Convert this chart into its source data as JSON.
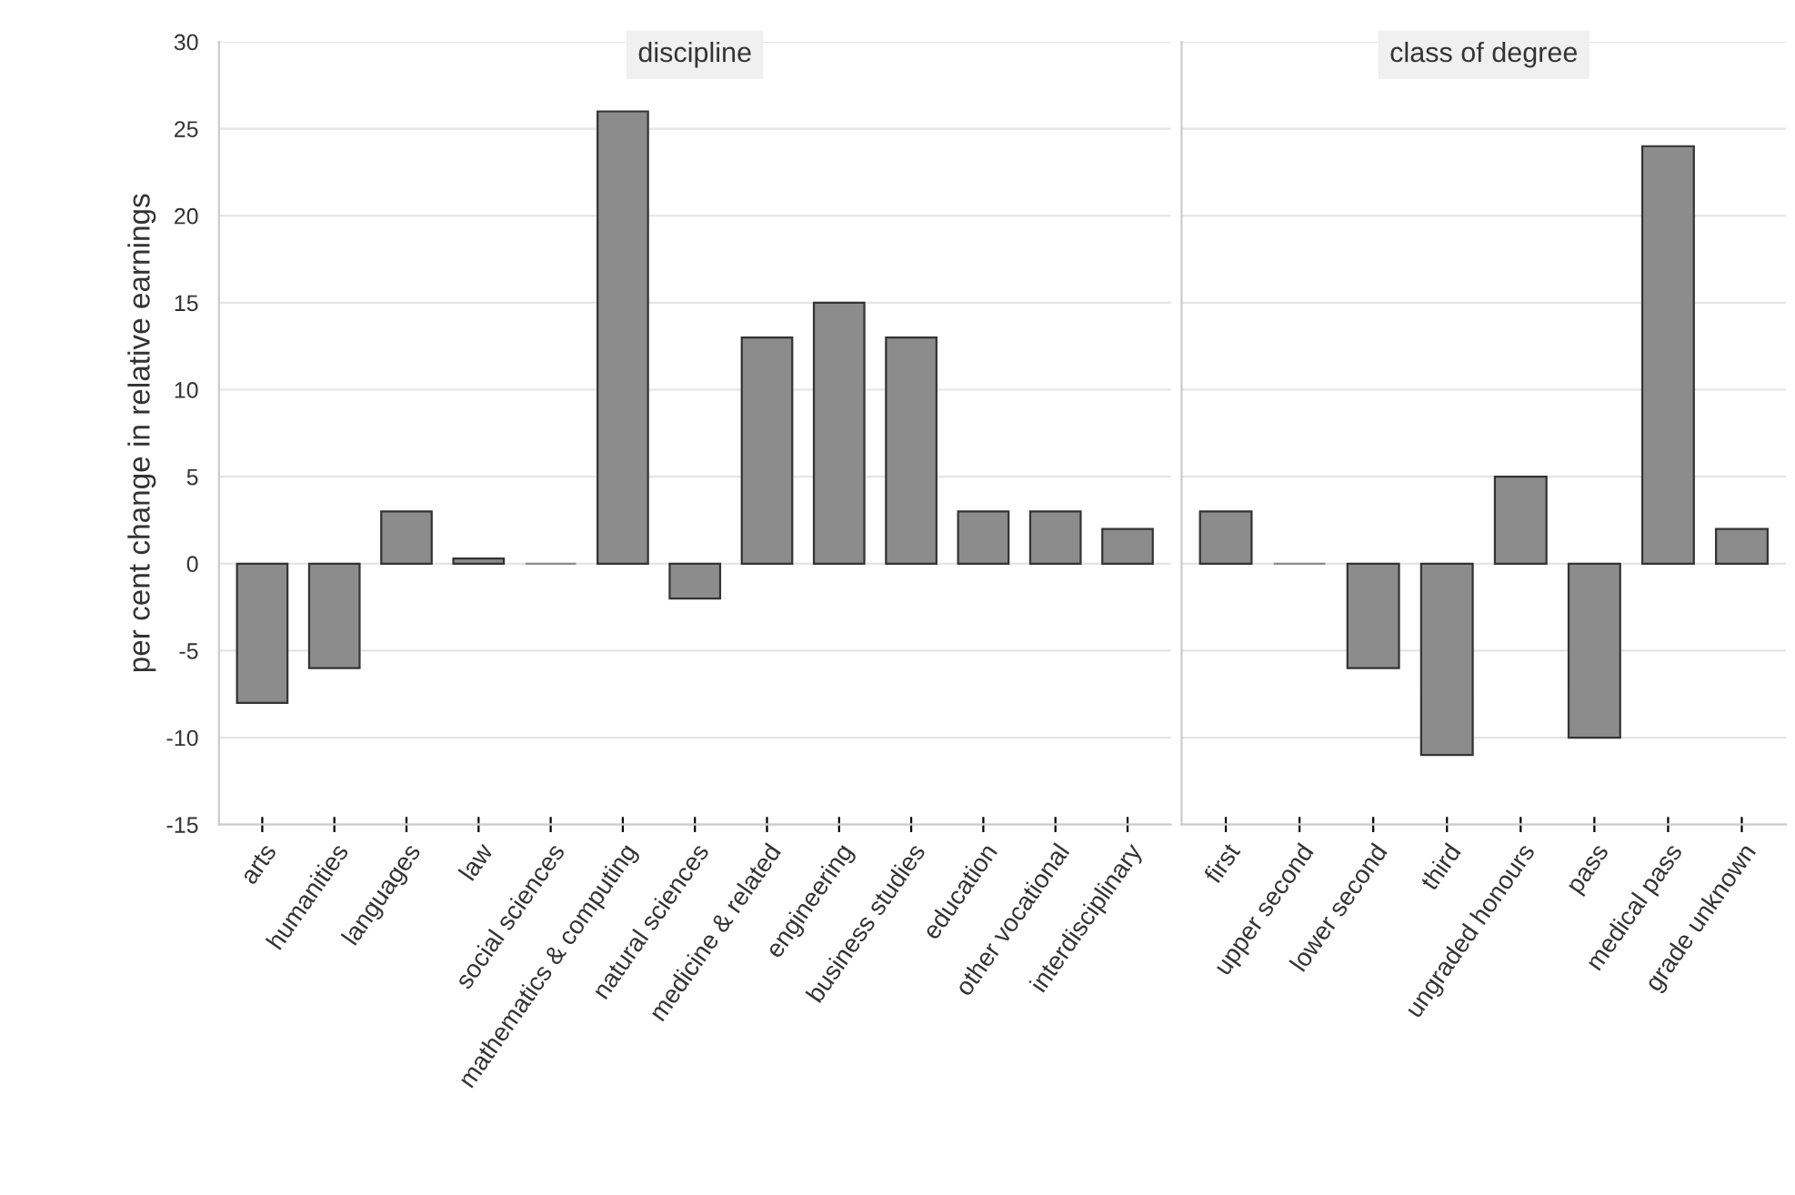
{
  "chart_data": [
    {
      "type": "bar",
      "title": "discipline",
      "ylabel": "per cent change in relative earnings",
      "categories": [
        "arts",
        "humanities",
        "languages",
        "law",
        "social sciences",
        "mathematics & computing",
        "natural sciences",
        "medicine & related",
        "engineering",
        "business studies",
        "education",
        "other vocational",
        "interdisciplinary"
      ],
      "values": [
        -8,
        -6,
        3,
        0.3,
        0,
        26,
        -2,
        13,
        15,
        13,
        3,
        3,
        2
      ],
      "color": "#8c8c8c",
      "ylim": [
        -15,
        30
      ],
      "yticks": [
        -15,
        -10,
        -5,
        0,
        5,
        10,
        15,
        20,
        25,
        30
      ],
      "grid": "y"
    },
    {
      "type": "bar",
      "title": "class of degree",
      "categories": [
        "first",
        "upper second",
        "lower second",
        "third",
        "ungraded honours",
        "pass",
        "medical pass",
        "grade unknown"
      ],
      "values": [
        3,
        0,
        -6,
        -11,
        5,
        -10,
        24,
        2
      ],
      "color": "#8c8c8c",
      "ylim": [
        -15,
        30
      ],
      "yticks": [
        -15,
        -10,
        -5,
        0,
        5,
        10,
        15,
        20,
        25,
        30
      ],
      "grid": "y",
      "tick_labels": "x"
    }
  ]
}
